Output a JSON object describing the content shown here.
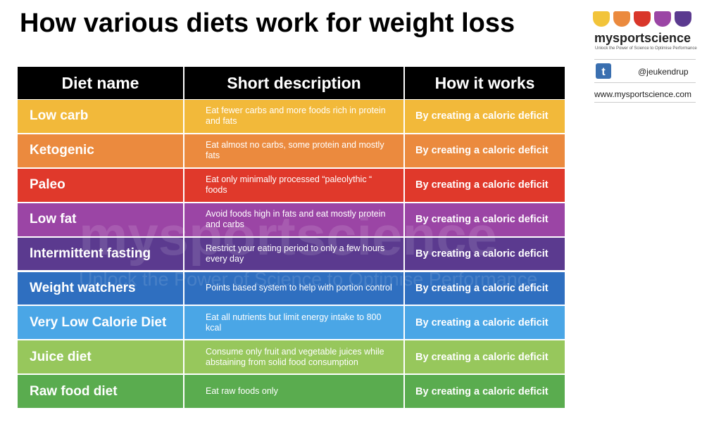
{
  "header": {
    "title": "How various diets work for weight loss"
  },
  "brand": {
    "name": "mysportscience",
    "tagline": "Unlock the Power of Science to Optimise Performance",
    "twitter": "@jeukendrup",
    "url": "www.mysportscience.com"
  },
  "table": {
    "columns": [
      "Diet name",
      "Short description",
      "How it works"
    ],
    "rows": [
      [
        "Low carb",
        "Eat fewer carbs and more foods rich in protein and fats",
        "By creating a caloric deficit"
      ],
      [
        "Ketogenic",
        "Eat almost no carbs, some protein and mostly fats",
        "By creating a caloric deficit"
      ],
      [
        "Paleo",
        "Eat only minimally processed “paleolythic “ foods",
        "By creating a caloric deficit"
      ],
      [
        "Low fat",
        "Avoid foods high in fats and eat mostly protein and carbs",
        "By creating a caloric deficit"
      ],
      [
        "Intermittent fasting",
        "Restrict your eating period to only a few hours every day",
        "By creating a caloric deficit"
      ],
      [
        "Weight watchers",
        "Points based system to help with portion control",
        "By creating a caloric deficit"
      ],
      [
        "Very Low Calorie Diet",
        "Eat all nutrients but limit energy intake to 800 kcal",
        "By creating a caloric deficit"
      ],
      [
        "Juice diet",
        "Consume only fruit and vegetable juices while abstaining from solid food consumption",
        "By creating a caloric deficit"
      ],
      [
        "Raw food diet",
        "Eat raw foods only",
        "By creating a caloric deficit"
      ]
    ]
  }
}
